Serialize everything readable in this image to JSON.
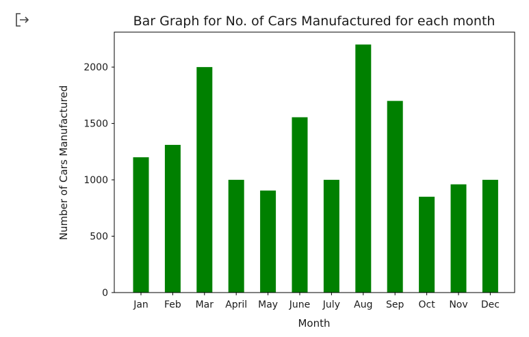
{
  "output_icon": {
    "name": "output-redirect-icon"
  },
  "chart_data": {
    "type": "bar",
    "title": "Bar Graph for No. of Cars Manufactured for each month",
    "xlabel": "Month",
    "ylabel": "Number of Cars Manufactured",
    "categories": [
      "Jan",
      "Feb",
      "Mar",
      "April",
      "May",
      "June",
      "July",
      "Aug",
      "Sep",
      "Oct",
      "Nov",
      "Dec"
    ],
    "values": [
      1200,
      1310,
      2000,
      1000,
      905,
      1555,
      1000,
      2200,
      1700,
      850,
      960,
      1000
    ],
    "ylim": [
      0,
      2310
    ],
    "yticks": [
      0,
      500,
      1000,
      1500,
      2000
    ],
    "bar_color": "#008000",
    "grid": false,
    "legend": "none"
  }
}
